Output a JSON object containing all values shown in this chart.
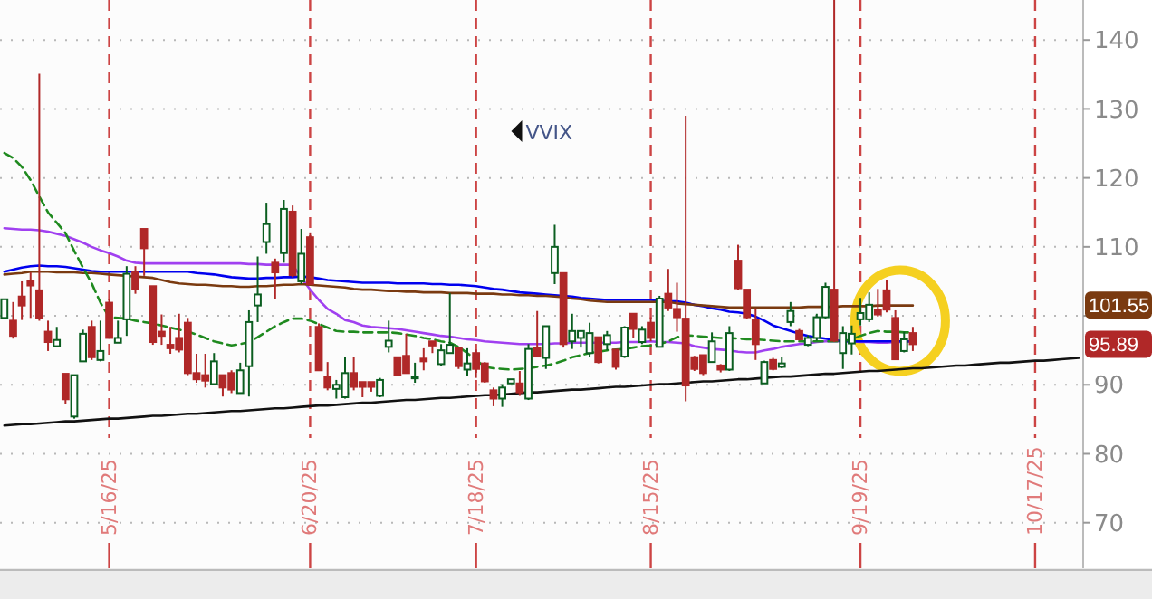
{
  "chart_data": {
    "type": "candlestick",
    "categories": [
      null,
      null,
      null,
      null,
      null,
      null,
      null,
      null,
      null,
      null,
      null,
      null,
      "5/16/25",
      null,
      null,
      null,
      null,
      null,
      null,
      null,
      null,
      null,
      null,
      null,
      null,
      null,
      null,
      null,
      null,
      null,
      null,
      null,
      null,
      null,
      null,
      "6/20/25",
      null,
      null,
      null,
      null,
      null,
      null,
      null,
      null,
      null,
      null,
      null,
      null,
      null,
      null,
      null,
      null,
      null,
      null,
      "7/18/25",
      null,
      null,
      null,
      null,
      null,
      null,
      null,
      null,
      null,
      null,
      null,
      null,
      null,
      null,
      null,
      null,
      null,
      null,
      null,
      "8/15/25",
      null,
      null,
      null,
      null,
      null,
      null,
      null,
      null,
      null,
      null,
      null,
      null,
      null,
      null,
      null,
      null,
      null,
      null,
      null,
      null,
      null,
      null,
      null,
      "9/19/25",
      null,
      null,
      null,
      null,
      null,
      null,
      null,
      null,
      null,
      null,
      null,
      null,
      null,
      null,
      null,
      null,
      null,
      null,
      null,
      "10/17/25",
      null,
      null,
      null,
      null,
      null
    ],
    "ohlc": [
      [
        99.7,
        102.4,
        99.5,
        102.4
      ],
      [
        99.3,
        102,
        96.7,
        97.1
      ],
      [
        102.8,
        105,
        99.4,
        101.5
      ],
      [
        105,
        106.3,
        99.7,
        104.4
      ],
      [
        103.7,
        135.1,
        99.3,
        99.7
      ],
      [
        97.7,
        99.3,
        94.9,
        96.2
      ],
      [
        95.6,
        98.4,
        95.6,
        96.5
      ],
      [
        91.6,
        91.6,
        87.2,
        87.9
      ],
      [
        85.4,
        91.4,
        85.1,
        91.4
      ],
      [
        93.4,
        98,
        93.4,
        97.4
      ],
      [
        98.4,
        99.3,
        93.6,
        94
      ],
      [
        93.6,
        99.3,
        93.4,
        94.9
      ],
      [
        101.9,
        102.4,
        96.7,
        96.8
      ],
      [
        96.1,
        99.3,
        96.1,
        96.8
      ],
      [
        99.5,
        107.2,
        97.1,
        106.1
      ],
      [
        106.3,
        107.2,
        103.2,
        103.9
      ],
      [
        112.6,
        112.6,
        105.8,
        109.8
      ],
      [
        104.3,
        104.3,
        95.8,
        96.2
      ],
      [
        97.7,
        100.2,
        95.8,
        97.1
      ],
      [
        95.8,
        98.4,
        94.5,
        95.3
      ],
      [
        96.8,
        100.3,
        94.7,
        95.1
      ],
      [
        99,
        99.7,
        91.4,
        91.7
      ],
      [
        91.7,
        94.5,
        90.3,
        90.8
      ],
      [
        91.4,
        94.5,
        89.6,
        90.6
      ],
      [
        90.1,
        94.6,
        90.1,
        93.4
      ],
      [
        91.4,
        91.4,
        88.3,
        89.6
      ],
      [
        91.7,
        92.1,
        88.8,
        89.3
      ],
      [
        88.8,
        93.2,
        88.8,
        92.1
      ],
      [
        92.7,
        100.8,
        88.3,
        99.1
      ],
      [
        101.5,
        108.6,
        99.1,
        103.1
      ],
      [
        110.7,
        116.4,
        109,
        113.3
      ],
      [
        107.7,
        108.3,
        102.4,
        106.3
      ],
      [
        109.1,
        116.8,
        107.7,
        115.5
      ],
      [
        115.1,
        116,
        105.6,
        105.9
      ],
      [
        105,
        112.6,
        104.6,
        109
      ],
      [
        111.4,
        112.1,
        104.6,
        104.6
      ],
      [
        98.4,
        98.9,
        92.1,
        92.1
      ],
      [
        91.2,
        93.3,
        89.2,
        89.6
      ],
      [
        89.4,
        90.7,
        88,
        90
      ],
      [
        88.2,
        94,
        88,
        91.7
      ],
      [
        91.7,
        94.1,
        89.2,
        89.7
      ],
      [
        90.4,
        90.4,
        88.2,
        89.7
      ],
      [
        90.4,
        90.4,
        89,
        89.7
      ],
      [
        88.4,
        91,
        88.2,
        90.7
      ],
      [
        95.5,
        99.3,
        94.7,
        96.4
      ],
      [
        94,
        94,
        91.4,
        91.4
      ],
      [
        94.2,
        97.4,
        91.7,
        91.7
      ],
      [
        91,
        93.2,
        90.3,
        91.2
      ],
      [
        93.8,
        95.3,
        92.1,
        93.4
      ],
      [
        96.3,
        96.3,
        94.6,
        95.7
      ],
      [
        93,
        95.9,
        92.7,
        95
      ],
      [
        94.6,
        103.3,
        94.6,
        95.8
      ],
      [
        95.4,
        95.4,
        92.3,
        92.7
      ],
      [
        92.2,
        95.3,
        91.3,
        93.1
      ],
      [
        94.6,
        95.1,
        91,
        92.3
      ],
      [
        93.1,
        93.3,
        90.3,
        90.5
      ],
      [
        89.2,
        89.6,
        86.9,
        88
      ],
      [
        88,
        90.1,
        86.8,
        89.6
      ],
      [
        90.2,
        90.8,
        90.2,
        90.8
      ],
      [
        90.2,
        92,
        88.4,
        88.9
      ],
      [
        88,
        95.9,
        87.8,
        95.2
      ],
      [
        95.4,
        100.7,
        94.1,
        94.1
      ],
      [
        93.9,
        98.5,
        92.3,
        98.5
      ],
      [
        106.2,
        113.2,
        104.6,
        110
      ],
      [
        106.2,
        106.2,
        95.4,
        95.9
      ],
      [
        96.3,
        100.3,
        95.2,
        97.8
      ],
      [
        96.8,
        97.8,
        95.4,
        97.8
      ],
      [
        94.6,
        99,
        94.1,
        97.5
      ],
      [
        96.9,
        96.9,
        93.1,
        93.3
      ],
      [
        95.9,
        97.8,
        95,
        97.2
      ],
      [
        95.1,
        95.1,
        92.2,
        92.6
      ],
      [
        94.1,
        98.5,
        93.9,
        98.3
      ],
      [
        100.3,
        100.3,
        96.8,
        98.1
      ],
      [
        96.2,
        98.5,
        95.9,
        98
      ],
      [
        99,
        99.8,
        96.3,
        96.8
      ],
      [
        95.5,
        102.9,
        95.5,
        102.5
      ],
      [
        103.2,
        106.8,
        100.7,
        101.2
      ],
      [
        101,
        104.8,
        97.7,
        99.8
      ],
      [
        99.6,
        129,
        87.6,
        89.9
      ],
      [
        94,
        94.2,
        92,
        92.3
      ],
      [
        94.3,
        94.3,
        91.4,
        91.7
      ],
      [
        93.3,
        97.6,
        93.3,
        96.3
      ],
      [
        92.8,
        93,
        91.8,
        92.2
      ],
      [
        92.2,
        98.5,
        92,
        97.5
      ],
      [
        108,
        110.3,
        103.8,
        104
      ],
      [
        103.8,
        103.8,
        99.6,
        99.8
      ],
      [
        99.4,
        101.1,
        93.6,
        95.9
      ],
      [
        90.2,
        93.5,
        90.2,
        93.3
      ],
      [
        93.6,
        93.9,
        92.1,
        92.3
      ],
      [
        92.6,
        94.1,
        92.4,
        93.1
      ],
      [
        99.1,
        102,
        98.5,
        100.7
      ],
      [
        97.8,
        98.1,
        96.4,
        96.6
      ],
      [
        95.8,
        97.2,
        95.6,
        96.8
      ],
      [
        96.8,
        100.3,
        96.4,
        99.8
      ],
      [
        99.8,
        104.8,
        99.6,
        104.2
      ],
      [
        103.8,
        145.8,
        96.2,
        96.4
      ],
      [
        94.6,
        98.5,
        92.3,
        97.5
      ],
      [
        96,
        98.6,
        94.4,
        97.4
      ],
      [
        99.5,
        102.6,
        98.6,
        100.4
      ],
      [
        99.5,
        103.4,
        99.1,
        101.6
      ],
      [
        100.8,
        103.9,
        99.9,
        100.2
      ],
      [
        103.7,
        105.2,
        100.5,
        100.9
      ],
      [
        99.7,
        100.8,
        93.6,
        93.7
      ],
      [
        94.9,
        97.7,
        94.7,
        96.6
      ],
      [
        97.5,
        98.4,
        94.9,
        95.89
      ],
      null,
      null,
      null,
      null,
      null,
      null,
      null,
      null,
      null,
      null,
      null,
      null,
      null,
      null,
      null,
      null,
      null,
      null,
      null
    ],
    "series": [
      {
        "type": "line",
        "color": "#a040f0",
        "values": [
          112.7,
          112.6,
          112.5,
          112.5,
          112.4,
          112.2,
          111.9,
          111.6,
          111.1,
          110.6,
          110,
          109.5,
          109.1,
          108.6,
          108,
          107.7,
          107.6,
          107.6,
          107.6,
          107.6,
          107.6,
          107.6,
          107.6,
          107.6,
          107.6,
          107.6,
          107.6,
          107.6,
          107.5,
          107.5,
          107.4,
          107.4,
          107.4,
          107.4,
          105.5,
          103.8,
          102.3,
          101,
          100.3,
          99.4,
          99.1,
          98.6,
          98.4,
          98.3,
          98.2,
          98.1,
          97.9,
          97.7,
          97.5,
          97.3,
          97.1,
          97,
          96.8,
          96.6,
          96.5,
          96.3,
          96.2,
          96.1,
          96,
          95.9,
          95.9,
          95.9,
          95.9,
          96,
          96,
          96.1,
          96.1,
          96.1,
          96.1,
          96.1,
          96.1,
          96.2,
          96.2,
          96.2,
          96.3,
          96.2,
          96.2,
          96.1,
          96,
          95.6,
          95.4,
          95.2,
          95.1,
          95,
          94.8,
          94.7,
          94.7,
          95,
          95.2,
          95.5,
          95.7,
          95.9,
          96,
          96.2,
          96.3,
          96.3,
          96.3,
          96.3,
          96.2,
          96.2,
          96.1,
          96.1,
          96.2,
          96.2,
          96.3,
          null,
          null,
          null,
          null,
          null,
          null,
          null,
          null,
          null,
          null,
          null,
          null,
          null,
          null,
          null,
          null,
          null,
          null,
          null
        ]
      },
      {
        "type": "line",
        "color": "#0000ee",
        "values": [
          106.4,
          106.7,
          107,
          107.2,
          107.3,
          107.2,
          107.2,
          107.1,
          106.9,
          106.7,
          106.5,
          106.4,
          106.4,
          106.4,
          106.4,
          106.4,
          106.4,
          106.4,
          106.4,
          106.4,
          106.4,
          106.4,
          106.2,
          106.1,
          106,
          105.8,
          105.6,
          105.5,
          105.4,
          105.4,
          105.5,
          105.5,
          105.6,
          105.6,
          105.7,
          105.6,
          105.4,
          105.2,
          105.1,
          105,
          104.9,
          104.8,
          104.8,
          104.8,
          104.8,
          104.7,
          104.7,
          104.7,
          104.7,
          104.6,
          104.6,
          104.5,
          104.5,
          104.4,
          104.3,
          104.1,
          103.9,
          103.8,
          103.6,
          103.4,
          103.3,
          103.2,
          103.1,
          103,
          102.9,
          102.8,
          102.6,
          102.5,
          102.4,
          102.3,
          102.3,
          102.3,
          102.3,
          102.3,
          102.3,
          102.2,
          102.1,
          102.1,
          101.9,
          101.6,
          101.4,
          101.1,
          100.9,
          100.6,
          100.5,
          100.3,
          99.9,
          99.3,
          98.6,
          98.2,
          97.8,
          97.4,
          97.1,
          96.9,
          96.7,
          96.5,
          96.3,
          96.3,
          96.3,
          96.3,
          96.3,
          96.3,
          96.3,
          96.3,
          96.3,
          null,
          null,
          null,
          null,
          null,
          null,
          null,
          null,
          null,
          null,
          null,
          null,
          null,
          null,
          null,
          null,
          null,
          null,
          null
        ]
      },
      {
        "type": "line",
        "color": "#7a3a10",
        "values": [
          106,
          106.1,
          106.2,
          106.4,
          106.4,
          106.4,
          106.3,
          106.3,
          106.3,
          106.2,
          106.2,
          106.1,
          106,
          105.9,
          105.8,
          105.7,
          105.6,
          105.5,
          105.2,
          104.9,
          104.7,
          104.6,
          104.5,
          104.5,
          104.4,
          104.3,
          104.3,
          104.2,
          104.2,
          104.3,
          104.3,
          104.4,
          104.5,
          104.5,
          104.6,
          104.5,
          104.4,
          104.3,
          104.2,
          104.1,
          103.9,
          103.8,
          103.8,
          103.7,
          103.6,
          103.6,
          103.5,
          103.5,
          103.4,
          103.4,
          103.4,
          103.3,
          103.3,
          103.3,
          103.2,
          103.2,
          103.2,
          103.1,
          103.1,
          103,
          103,
          102.9,
          102.9,
          102.8,
          102.7,
          102.5,
          102.4,
          102.2,
          102.1,
          102,
          102,
          102,
          102,
          102,
          102,
          102,
          102,
          101.8,
          101.7,
          101.6,
          101.5,
          101.4,
          101.3,
          101.2,
          101.2,
          101.2,
          101.2,
          101.2,
          101.2,
          101.2,
          101.2,
          101.2,
          101.3,
          101.3,
          101.3,
          101.3,
          101.4,
          101.4,
          101.4,
          101.4,
          101.5,
          101.5,
          101.5,
          101.5,
          101.5,
          null,
          null,
          null,
          null,
          null,
          null,
          null,
          null,
          null,
          null,
          null,
          null,
          null,
          null,
          null,
          null,
          null,
          null,
          null
        ]
      },
      {
        "type": "line",
        "color": "#1f8a1f",
        "line_style": "dashed",
        "values": [
          123.6,
          122.9,
          121.6,
          119.7,
          117.3,
          115,
          113.5,
          112,
          109.4,
          107,
          104.7,
          101.9,
          99.8,
          99.7,
          99.6,
          99.3,
          99.1,
          98.9,
          98.6,
          98.3,
          98,
          97.7,
          97.3,
          96.8,
          96.3,
          96,
          95.7,
          95.9,
          96.2,
          96.9,
          97.7,
          98.5,
          99.1,
          99.6,
          99.6,
          99.3,
          98.8,
          98.3,
          97.8,
          97.7,
          97.7,
          97.6,
          97.6,
          97.6,
          97.6,
          97.5,
          97.3,
          97.1,
          96.8,
          96.6,
          96.3,
          96.1,
          95.5,
          94.6,
          93.6,
          92.6,
          92.4,
          92.3,
          92.2,
          92.3,
          92.4,
          92.6,
          92.8,
          93.1,
          93.5,
          94,
          94.3,
          94.6,
          94.8,
          95,
          95.1,
          95.2,
          95.4,
          95.6,
          95.7,
          95.9,
          96.3,
          96.9,
          97.2,
          97.1,
          97,
          96.9,
          96.8,
          96.8,
          96.7,
          96.6,
          96.6,
          96.5,
          96.4,
          96.3,
          96.3,
          96.3,
          96.3,
          96.3,
          96.3,
          96.3,
          96.3,
          96.6,
          97.1,
          97.5,
          97.8,
          97.7,
          97.7,
          97.6,
          97.6,
          null,
          null,
          null,
          null,
          null,
          null,
          null,
          null,
          null,
          null,
          null,
          null,
          null,
          null,
          null,
          null,
          null,
          null,
          null
        ]
      },
      {
        "type": "line",
        "color": "#111111",
        "values": [
          84.1,
          84.2,
          84.3,
          84.3,
          84.4,
          84.5,
          84.6,
          84.7,
          84.7,
          84.8,
          84.9,
          85,
          85.1,
          85.1,
          85.2,
          85.3,
          85.4,
          85.5,
          85.5,
          85.6,
          85.7,
          85.8,
          85.8,
          85.9,
          86,
          86.1,
          86.2,
          86.2,
          86.3,
          86.4,
          86.5,
          86.6,
          86.6,
          86.7,
          86.8,
          86.9,
          87,
          87,
          87.1,
          87.2,
          87.3,
          87.4,
          87.4,
          87.5,
          87.6,
          87.7,
          87.8,
          87.8,
          87.9,
          88,
          88.1,
          88.1,
          88.2,
          88.3,
          88.4,
          88.5,
          88.5,
          88.6,
          88.7,
          88.8,
          88.9,
          88.9,
          89,
          89.1,
          89.2,
          89.3,
          89.3,
          89.4,
          89.5,
          89.6,
          89.7,
          89.7,
          89.8,
          89.9,
          90,
          90.1,
          90.1,
          90.2,
          90.3,
          90.4,
          90.5,
          90.5,
          90.6,
          90.7,
          90.8,
          90.8,
          90.9,
          91,
          91.1,
          91.2,
          91.2,
          91.3,
          91.4,
          91.5,
          91.6,
          91.6,
          91.7,
          91.8,
          91.9,
          92,
          92,
          92.1,
          92.2,
          92.3,
          92.4,
          92.4,
          92.5,
          92.6,
          92.7,
          92.8,
          92.8,
          92.9,
          93,
          93.1,
          93.2,
          93.2,
          93.3,
          93.4,
          93.5,
          93.5,
          93.6,
          93.7,
          93.8,
          93.9
        ]
      }
    ],
    "ylim": [
      63.4,
      145.8
    ],
    "yticks": [
      70,
      80,
      90,
      {
        "value": 100,
        "label": null
      },
      110,
      120,
      130,
      140
    ],
    "grid": true,
    "annotations": [
      "VVIX",
      {
        "text": "101.55",
        "y": 101.55
      },
      "95.89"
    ]
  }
}
